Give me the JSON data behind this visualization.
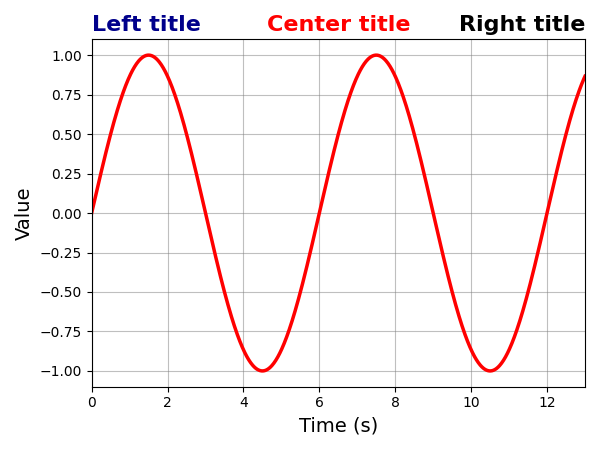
{
  "left_title": "Left title",
  "center_title": "Center title",
  "right_title": "Right title",
  "left_title_color": "darkblue",
  "center_title_color": "red",
  "right_title_color": "black",
  "title_fontsize": 16,
  "title_fontweight": "bold",
  "xlabel": "Time (s)",
  "ylabel": "Value",
  "xlabel_fontsize": 14,
  "ylabel_fontsize": 14,
  "num_points": 1000,
  "period": 6.0,
  "line_color": "red",
  "line_width": 2.5,
  "background_color": "white",
  "grid_color": "gray",
  "grid_alpha": 0.5,
  "grid_linestyle": "-",
  "grid_linewidth": 0.8,
  "xlim": [
    0,
    13
  ],
  "ylim": [
    -1.1,
    1.1
  ],
  "xticks": [
    0,
    2,
    4,
    6,
    8,
    10,
    12
  ],
  "yticks": [
    -1.0,
    -0.75,
    -0.5,
    -0.25,
    0.0,
    0.25,
    0.5,
    0.75,
    1.0
  ]
}
